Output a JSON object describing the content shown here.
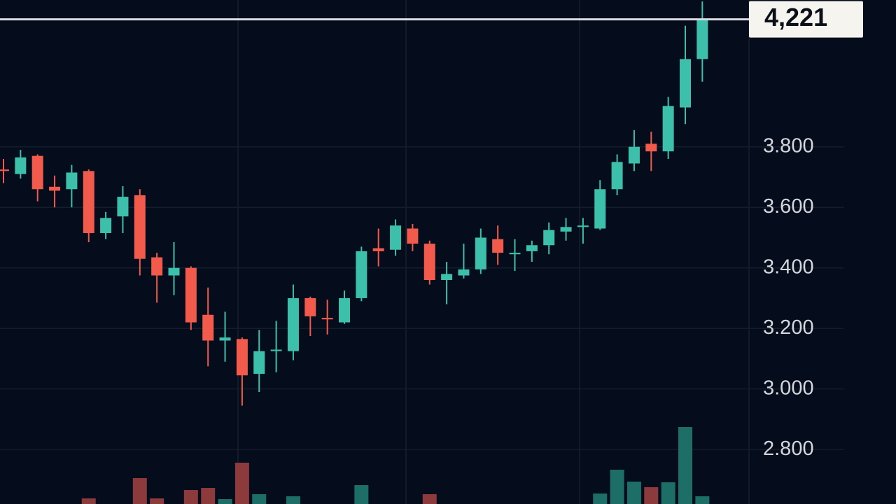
{
  "chart_data": {
    "type": "candlestick",
    "ylim": [
      2620,
      4285
    ],
    "yticks": [
      {
        "value": 2800,
        "label": "2.800"
      },
      {
        "value": 3000,
        "label": "3.000"
      },
      {
        "value": 3200,
        "label": "3.200"
      },
      {
        "value": 3400,
        "label": "3.400"
      },
      {
        "value": 3600,
        "label": "3.600"
      },
      {
        "value": 3800,
        "label": "3.800"
      }
    ],
    "grid": true,
    "up_color": "#3cc0ac",
    "down_color": "#f25a4c",
    "up_volume_color": "#1d6e66",
    "down_volume_color": "#8c3a3c",
    "last_price": {
      "value": 4221,
      "label": "4,221"
    },
    "open": [
      3725,
      3710,
      3770,
      3668,
      3660,
      3720,
      3515,
      3570,
      3640,
      3435,
      3375,
      3400,
      3245,
      3160,
      3165,
      3050,
      3125,
      3125,
      3300,
      3235,
      3220,
      3300,
      3465,
      3460,
      3530,
      3480,
      3360,
      3375,
      3395,
      3495,
      3445,
      3455,
      3475,
      3520,
      3535,
      3530,
      3660,
      3745,
      3810,
      3785,
      3930,
      4090
    ],
    "high": [
      3760,
      3790,
      3775,
      3705,
      3740,
      3725,
      3585,
      3670,
      3660,
      3450,
      3485,
      3405,
      3335,
      3255,
      3170,
      3195,
      3225,
      3345,
      3305,
      3295,
      3325,
      3470,
      3530,
      3560,
      3545,
      3490,
      3420,
      3480,
      3530,
      3540,
      3495,
      3490,
      3550,
      3565,
      3565,
      3690,
      3775,
      3855,
      3850,
      3965,
      4200,
      4280
    ],
    "low": [
      3680,
      3695,
      3620,
      3600,
      3600,
      3485,
      3495,
      3515,
      3375,
      3285,
      3310,
      3195,
      3075,
      3090,
      2945,
      2990,
      3055,
      3095,
      3175,
      3180,
      3215,
      3290,
      3405,
      3440,
      3455,
      3345,
      3280,
      3365,
      3380,
      3410,
      3390,
      3420,
      3445,
      3490,
      3480,
      3525,
      3640,
      3720,
      3720,
      3760,
      3875,
      4015
    ],
    "close": [
      3720,
      3765,
      3660,
      3655,
      3715,
      3515,
      3565,
      3635,
      3430,
      3375,
      3400,
      3220,
      3160,
      3170,
      3045,
      3125,
      3130,
      3300,
      3240,
      3230,
      3300,
      3455,
      3455,
      3540,
      3480,
      3360,
      3380,
      3395,
      3500,
      3450,
      3450,
      3475,
      3525,
      3535,
      3540,
      3660,
      3750,
      3800,
      3785,
      3935,
      4090,
      4221
    ],
    "volume_ylim": [
      0,
      120
    ],
    "volume": [
      null,
      null,
      null,
      null,
      null,
      8,
      null,
      null,
      37,
      8,
      null,
      20,
      23,
      7,
      59,
      14,
      null,
      11,
      null,
      null,
      null,
      27,
      null,
      null,
      null,
      14,
      null,
      null,
      null,
      null,
      null,
      null,
      null,
      null,
      null,
      15,
      49,
      32,
      24,
      31,
      110,
      11
    ]
  }
}
